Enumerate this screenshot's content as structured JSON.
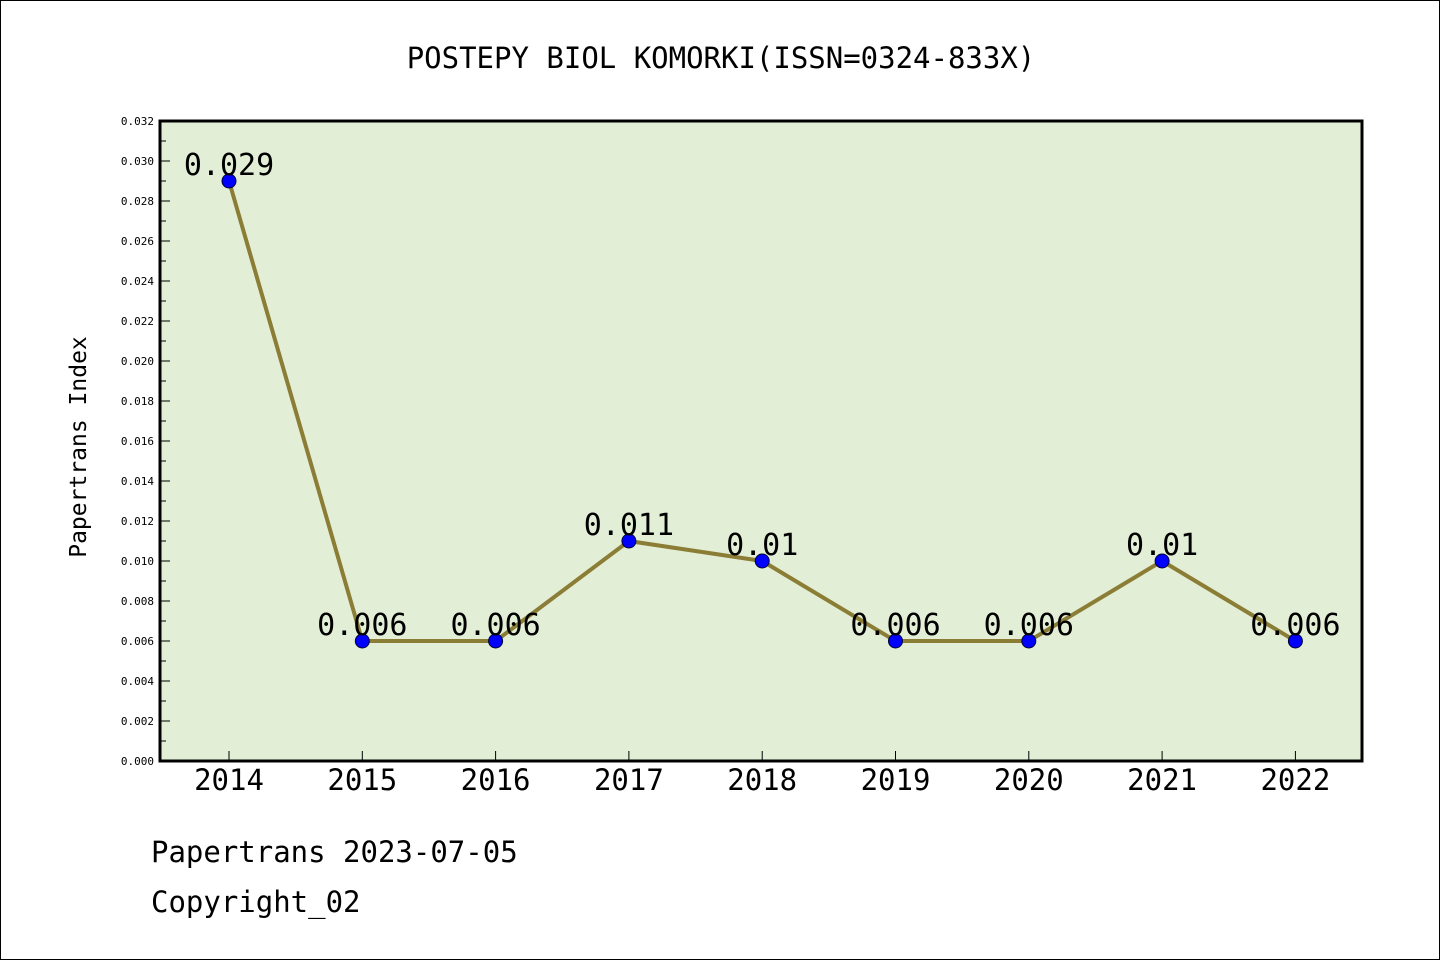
{
  "chart_data": {
    "type": "line",
    "title": "POSTEPY BIOL KOMORKI(ISSN=0324-833X)",
    "xlabel": "",
    "ylabel": "Papertrans Index",
    "categories": [
      "2014",
      "2015",
      "2016",
      "2017",
      "2018",
      "2019",
      "2020",
      "2021",
      "2022"
    ],
    "values": [
      0.029,
      0.006,
      0.006,
      0.011,
      0.01,
      0.006,
      0.006,
      0.01,
      0.006
    ],
    "data_labels": [
      "0.029",
      "0.006",
      "0.006",
      "0.011",
      "0.01",
      "0.006",
      "0.006",
      "0.01",
      "0.006"
    ],
    "ylim": [
      0,
      0.032
    ],
    "y_ticks": [
      "0.000",
      "0.002",
      "0.004",
      "0.006",
      "0.008",
      "0.010",
      "0.012",
      "0.014",
      "0.016",
      "0.018",
      "0.020",
      "0.022",
      "0.024",
      "0.026",
      "0.028",
      "0.030",
      "0.032"
    ],
    "grid": false,
    "colors": {
      "plot_background": "#e2efd6",
      "line": "#8b7d35",
      "marker": "#0000ff"
    }
  },
  "footer": {
    "line1": "Papertrans 2023-07-05",
    "line2": "Copyright_02"
  }
}
